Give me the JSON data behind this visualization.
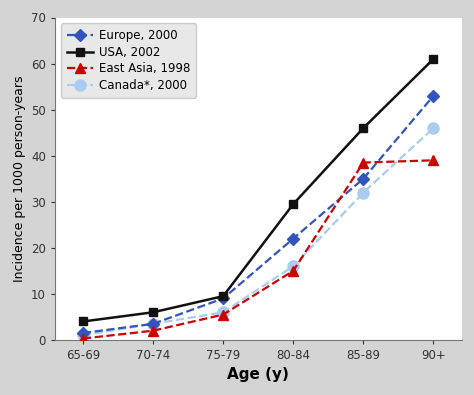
{
  "x_labels": [
    "65-69",
    "70-74",
    "75-79",
    "80-84",
    "85-89",
    "90+"
  ],
  "x_positions": [
    0,
    1,
    2,
    3,
    4,
    5
  ],
  "series": [
    {
      "label": "Europe, 2000",
      "values": [
        1.5,
        3.5,
        9.0,
        22.0,
        35.0,
        53.0
      ],
      "color": "#3355bb",
      "linestyle": "--",
      "marker": "D",
      "markersize": 6,
      "linewidth": 1.6,
      "zorder": 3,
      "markerfacecolor": "#3355bb",
      "markeredgecolor": "#3355bb"
    },
    {
      "label": "USA, 2002",
      "values": [
        4.0,
        6.0,
        9.5,
        29.5,
        46.0,
        61.0
      ],
      "color": "#111111",
      "linestyle": "-",
      "marker": "s",
      "markersize": 6,
      "linewidth": 1.8,
      "zorder": 4,
      "markerfacecolor": "#111111",
      "markeredgecolor": "#111111"
    },
    {
      "label": "East Asia, 1998",
      "values": [
        0.3,
        2.0,
        5.5,
        15.0,
        38.5,
        39.0
      ],
      "color": "#cc0000",
      "linestyle": "--",
      "marker": "^",
      "markersize": 7,
      "linewidth": 1.6,
      "zorder": 3,
      "markerfacecolor": "#cc0000",
      "markeredgecolor": "#cc0000"
    },
    {
      "label": "Canada*, 2000",
      "values": [
        1.0,
        3.5,
        6.0,
        16.0,
        32.0,
        46.0
      ],
      "color": "#aaccee",
      "linestyle": "--",
      "marker": "o",
      "markersize": 8,
      "linewidth": 1.6,
      "zorder": 2,
      "markerfacecolor": "#aaccee",
      "markeredgecolor": "#aaccee"
    }
  ],
  "ylim": [
    0,
    70
  ],
  "yticks": [
    0,
    10,
    20,
    30,
    40,
    50,
    60,
    70
  ],
  "ylabel": "Incidence per 1000 person-years",
  "xlabel": "Age (y)",
  "outer_bg": "#d4d4d4",
  "plot_bg": "#ffffff",
  "legend_loc": "upper left",
  "axis_fontsize": 9,
  "tick_fontsize": 8.5,
  "legend_fontsize": 8.5,
  "xlabel_fontsize": 11
}
